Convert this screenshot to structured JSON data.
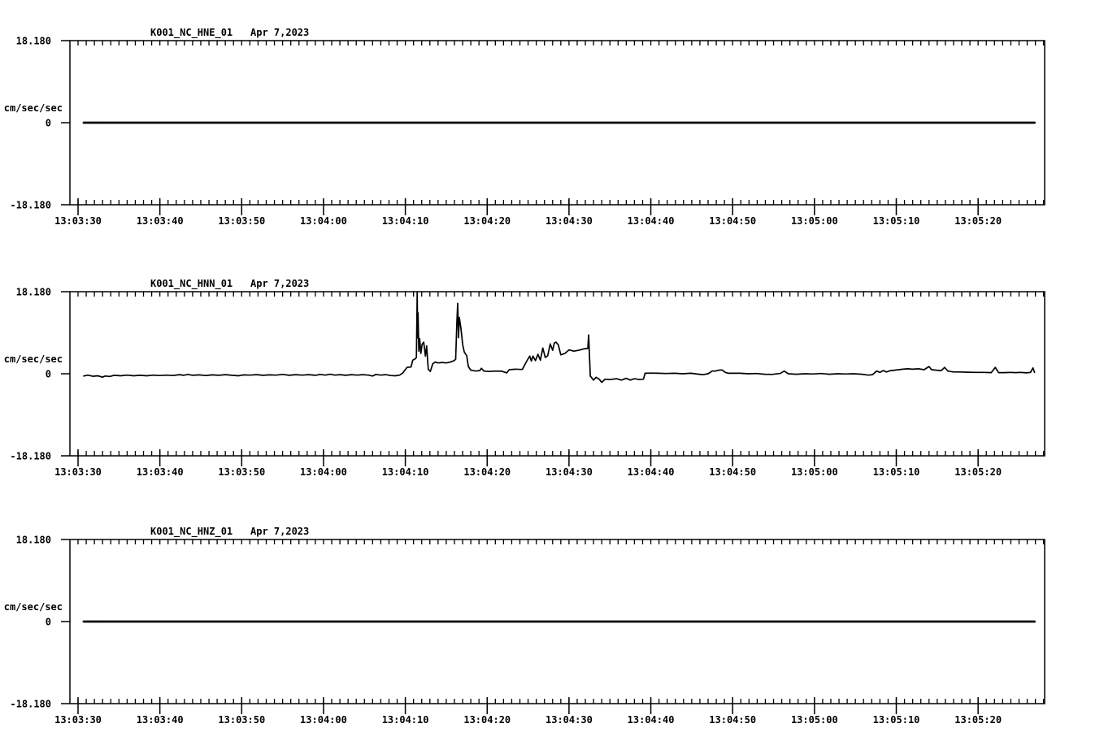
{
  "page": {
    "background": "#ffffff",
    "foreground": "#000000",
    "description": "Three-channel strong-motion seismogram display"
  },
  "chart_data": [
    {
      "type": "line",
      "title": "K001_NC_HNE_01",
      "date_label": "Apr 7,2023",
      "ylabel": "cm/sec/sec",
      "ylim": [
        -18.18,
        18.18
      ],
      "yticks": [
        {
          "value": 18.18,
          "label": "18.180"
        },
        {
          "value": 0,
          "label": "0"
        },
        {
          "value": -18.18,
          "label": "-18.180"
        }
      ],
      "xlim_seconds": [
        -1,
        118.1
      ],
      "x_minor_tick_interval_s": 1,
      "x_major_ticks": [
        {
          "t": 0,
          "label": "13:03:30"
        },
        {
          "t": 10,
          "label": "13:03:40"
        },
        {
          "t": 20,
          "label": "13:03:50"
        },
        {
          "t": 30,
          "label": "13:04:00"
        },
        {
          "t": 40,
          "label": "13:04:10"
        },
        {
          "t": 50,
          "label": "13:04:20"
        },
        {
          "t": 60,
          "label": "13:04:30"
        },
        {
          "t": 70,
          "label": "13:04:40"
        },
        {
          "t": 80,
          "label": "13:04:50"
        },
        {
          "t": 90,
          "label": "13:05:00"
        },
        {
          "t": 100,
          "label": "13:05:10"
        },
        {
          "t": 110,
          "label": "13:05:20"
        }
      ],
      "grid": false,
      "legend": false,
      "series": {
        "name": "HNE acceleration",
        "stroke_width": 2.8,
        "points": [
          [
            0.7,
            0
          ],
          [
            116.9,
            0
          ]
        ]
      }
    },
    {
      "type": "line",
      "title": "K001_NC_HNN_01",
      "date_label": "Apr 7,2023",
      "ylabel": "cm/sec/sec",
      "ylim": [
        -18.18,
        18.18
      ],
      "yticks": [
        {
          "value": 18.18,
          "label": "18.180"
        },
        {
          "value": 0,
          "label": "0"
        },
        {
          "value": -18.18,
          "label": "-18.180"
        }
      ],
      "xlim_seconds": [
        -1,
        118.1
      ],
      "x_minor_tick_interval_s": 1,
      "x_major_ticks": [
        {
          "t": 0,
          "label": "13:03:30"
        },
        {
          "t": 10,
          "label": "13:03:40"
        },
        {
          "t": 20,
          "label": "13:03:50"
        },
        {
          "t": 30,
          "label": "13:04:00"
        },
        {
          "t": 40,
          "label": "13:04:10"
        },
        {
          "t": 50,
          "label": "13:04:20"
        },
        {
          "t": 60,
          "label": "13:04:30"
        },
        {
          "t": 70,
          "label": "13:04:40"
        },
        {
          "t": 80,
          "label": "13:04:50"
        },
        {
          "t": 90,
          "label": "13:05:00"
        },
        {
          "t": 100,
          "label": "13:05:10"
        },
        {
          "t": 110,
          "label": "13:05:20"
        }
      ],
      "grid": false,
      "legend": false,
      "series": {
        "name": "HNN acceleration",
        "stroke_width": 1.7,
        "points": [
          [
            0.7,
            -0.5
          ],
          [
            1.2,
            -0.3
          ],
          [
            1.8,
            -0.55
          ],
          [
            2.4,
            -0.45
          ],
          [
            3.0,
            -0.75
          ],
          [
            3.3,
            -0.5
          ],
          [
            3.9,
            -0.6
          ],
          [
            4.4,
            -0.35
          ],
          [
            5.2,
            -0.45
          ],
          [
            6.0,
            -0.3
          ],
          [
            6.8,
            -0.45
          ],
          [
            7.6,
            -0.35
          ],
          [
            8.4,
            -0.45
          ],
          [
            9.2,
            -0.3
          ],
          [
            10.0,
            -0.4
          ],
          [
            10.8,
            -0.3
          ],
          [
            11.6,
            -0.4
          ],
          [
            12.4,
            -0.2
          ],
          [
            12.9,
            -0.35
          ],
          [
            13.4,
            -0.15
          ],
          [
            14.0,
            -0.35
          ],
          [
            14.8,
            -0.25
          ],
          [
            15.6,
            -0.4
          ],
          [
            16.4,
            -0.25
          ],
          [
            17.2,
            -0.35
          ],
          [
            18.0,
            -0.2
          ],
          [
            18.8,
            -0.35
          ],
          [
            19.6,
            -0.45
          ],
          [
            20.2,
            -0.25
          ],
          [
            21.0,
            -0.3
          ],
          [
            21.8,
            -0.2
          ],
          [
            22.6,
            -0.35
          ],
          [
            23.4,
            -0.25
          ],
          [
            24.2,
            -0.3
          ],
          [
            25.0,
            -0.15
          ],
          [
            25.8,
            -0.35
          ],
          [
            26.6,
            -0.2
          ],
          [
            27.4,
            -0.3
          ],
          [
            28.2,
            -0.2
          ],
          [
            29.0,
            -0.35
          ],
          [
            29.6,
            -0.15
          ],
          [
            30.2,
            -0.3
          ],
          [
            30.8,
            -0.1
          ],
          [
            31.4,
            -0.3
          ],
          [
            32.0,
            -0.2
          ],
          [
            32.7,
            -0.35
          ],
          [
            33.4,
            -0.2
          ],
          [
            34.1,
            -0.3
          ],
          [
            34.8,
            -0.2
          ],
          [
            35.5,
            -0.3
          ],
          [
            36.0,
            -0.5
          ],
          [
            36.4,
            -0.15
          ],
          [
            37.0,
            -0.3
          ],
          [
            37.6,
            -0.2
          ],
          [
            38.2,
            -0.4
          ],
          [
            38.8,
            -0.45
          ],
          [
            39.3,
            -0.3
          ],
          [
            39.7,
            0.2
          ],
          [
            40.2,
            1.4
          ],
          [
            40.7,
            1.5
          ],
          [
            40.9,
            3.0
          ],
          [
            41.2,
            3.3
          ],
          [
            41.35,
            3.6
          ],
          [
            41.45,
            18.1
          ],
          [
            41.5,
            8.0
          ],
          [
            41.55,
            13.5
          ],
          [
            41.65,
            5.0
          ],
          [
            41.75,
            7.8
          ],
          [
            41.9,
            4.5
          ],
          [
            42.05,
            6.5
          ],
          [
            42.25,
            7.0
          ],
          [
            42.45,
            3.9
          ],
          [
            42.6,
            6.2
          ],
          [
            42.8,
            1.0
          ],
          [
            43.05,
            0.5
          ],
          [
            43.35,
            2.2
          ],
          [
            43.65,
            2.6
          ],
          [
            44.0,
            2.4
          ],
          [
            44.5,
            2.5
          ],
          [
            45.0,
            2.4
          ],
          [
            45.5,
            2.6
          ],
          [
            45.95,
            2.9
          ],
          [
            46.15,
            3.2
          ],
          [
            46.3,
            11.5
          ],
          [
            46.4,
            15.6
          ],
          [
            46.5,
            8.0
          ],
          [
            46.6,
            12.5
          ],
          [
            46.8,
            10.0
          ],
          [
            47.0,
            6.5
          ],
          [
            47.2,
            4.8
          ],
          [
            47.5,
            4.0
          ],
          [
            47.7,
            1.6
          ],
          [
            48.0,
            0.8
          ],
          [
            48.6,
            0.6
          ],
          [
            49.1,
            0.7
          ],
          [
            49.3,
            1.2
          ],
          [
            49.6,
            0.6
          ],
          [
            50.2,
            0.5
          ],
          [
            51.0,
            0.6
          ],
          [
            51.8,
            0.55
          ],
          [
            52.4,
            0.2
          ],
          [
            52.7,
            0.9
          ],
          [
            53.5,
            1.0
          ],
          [
            54.3,
            0.95
          ],
          [
            54.8,
            2.7
          ],
          [
            55.2,
            3.9
          ],
          [
            55.4,
            2.8
          ],
          [
            55.6,
            3.9
          ],
          [
            55.9,
            2.9
          ],
          [
            56.2,
            4.3
          ],
          [
            56.5,
            3.0
          ],
          [
            56.8,
            5.7
          ],
          [
            57.1,
            3.6
          ],
          [
            57.4,
            4.0
          ],
          [
            57.7,
            6.6
          ],
          [
            58.0,
            5.2
          ],
          [
            58.2,
            6.8
          ],
          [
            58.4,
            7.0
          ],
          [
            58.7,
            6.4
          ],
          [
            59.0,
            4.2
          ],
          [
            59.5,
            4.5
          ],
          [
            60.0,
            5.3
          ],
          [
            60.6,
            5.0
          ],
          [
            61.2,
            5.2
          ],
          [
            61.8,
            5.5
          ],
          [
            62.3,
            5.6
          ],
          [
            62.4,
            8.6
          ],
          [
            62.6,
            -0.5
          ],
          [
            63.0,
            -1.4
          ],
          [
            63.3,
            -0.8
          ],
          [
            63.7,
            -1.2
          ],
          [
            64.0,
            -1.9
          ],
          [
            64.4,
            -1.2
          ],
          [
            65.0,
            -1.3
          ],
          [
            65.8,
            -1.1
          ],
          [
            66.4,
            -1.4
          ],
          [
            67.0,
            -1.0
          ],
          [
            67.5,
            -1.4
          ],
          [
            68.0,
            -1.1
          ],
          [
            68.6,
            -1.3
          ],
          [
            69.1,
            -1.2
          ],
          [
            69.3,
            0.1
          ],
          [
            70.0,
            0.15
          ],
          [
            70.9,
            0.1
          ],
          [
            71.9,
            0.05
          ],
          [
            72.9,
            0.1
          ],
          [
            73.9,
            0.0
          ],
          [
            74.9,
            0.1
          ],
          [
            75.9,
            -0.1
          ],
          [
            76.4,
            -0.2
          ],
          [
            77.0,
            0.0
          ],
          [
            77.5,
            0.6
          ],
          [
            77.9,
            0.6
          ],
          [
            78.3,
            0.8
          ],
          [
            78.7,
            0.85
          ],
          [
            79.1,
            0.3
          ],
          [
            79.5,
            0.1
          ],
          [
            80.9,
            0.1
          ],
          [
            81.9,
            0.0
          ],
          [
            82.9,
            0.05
          ],
          [
            83.9,
            -0.1
          ],
          [
            84.8,
            -0.15
          ],
          [
            85.8,
            0.05
          ],
          [
            86.3,
            0.6
          ],
          [
            86.8,
            0.0
          ],
          [
            87.8,
            -0.1
          ],
          [
            88.8,
            0.0
          ],
          [
            89.8,
            -0.05
          ],
          [
            90.8,
            0.05
          ],
          [
            91.8,
            -0.1
          ],
          [
            92.8,
            0.0
          ],
          [
            93.8,
            -0.05
          ],
          [
            94.8,
            0.0
          ],
          [
            95.8,
            -0.1
          ],
          [
            96.6,
            -0.3
          ],
          [
            97.1,
            -0.2
          ],
          [
            97.6,
            0.6
          ],
          [
            98.0,
            0.3
          ],
          [
            98.4,
            0.7
          ],
          [
            98.8,
            0.4
          ],
          [
            99.3,
            0.7
          ],
          [
            99.8,
            0.8
          ],
          [
            100.3,
            0.9
          ],
          [
            100.8,
            1.0
          ],
          [
            101.4,
            1.1
          ],
          [
            102.0,
            1.0
          ],
          [
            102.7,
            1.1
          ],
          [
            103.4,
            0.9
          ],
          [
            104.0,
            1.6
          ],
          [
            104.3,
            0.9
          ],
          [
            104.9,
            0.8
          ],
          [
            105.5,
            0.7
          ],
          [
            105.9,
            1.4
          ],
          [
            106.3,
            0.6
          ],
          [
            107.0,
            0.4
          ],
          [
            107.8,
            0.4
          ],
          [
            108.7,
            0.35
          ],
          [
            109.7,
            0.3
          ],
          [
            110.7,
            0.3
          ],
          [
            111.6,
            0.25
          ],
          [
            112.1,
            1.4
          ],
          [
            112.5,
            0.25
          ],
          [
            113.2,
            0.25
          ],
          [
            114.0,
            0.3
          ],
          [
            114.6,
            0.25
          ],
          [
            115.2,
            0.3
          ],
          [
            115.9,
            0.2
          ],
          [
            116.4,
            0.3
          ],
          [
            116.7,
            1.3
          ],
          [
            116.9,
            0.3
          ]
        ]
      }
    },
    {
      "type": "line",
      "title": "K001_NC_HNZ_01",
      "date_label": "Apr 7,2023",
      "ylabel": "cm/sec/sec",
      "ylim": [
        -18.18,
        18.18
      ],
      "yticks": [
        {
          "value": 18.18,
          "label": "18.180"
        },
        {
          "value": 0,
          "label": "0"
        },
        {
          "value": -18.18,
          "label": "-18.180"
        }
      ],
      "xlim_seconds": [
        -1,
        118.1
      ],
      "x_minor_tick_interval_s": 1,
      "x_major_ticks": [
        {
          "t": 0,
          "label": "13:03:30"
        },
        {
          "t": 10,
          "label": "13:03:40"
        },
        {
          "t": 20,
          "label": "13:03:50"
        },
        {
          "t": 30,
          "label": "13:04:00"
        },
        {
          "t": 40,
          "label": "13:04:10"
        },
        {
          "t": 50,
          "label": "13:04:20"
        },
        {
          "t": 60,
          "label": "13:04:30"
        },
        {
          "t": 70,
          "label": "13:04:40"
        },
        {
          "t": 80,
          "label": "13:04:50"
        },
        {
          "t": 90,
          "label": "13:05:00"
        },
        {
          "t": 100,
          "label": "13:05:10"
        },
        {
          "t": 110,
          "label": "13:05:20"
        }
      ],
      "grid": false,
      "legend": false,
      "series": {
        "name": "HNZ acceleration",
        "stroke_width": 2.8,
        "points": [
          [
            0.7,
            0
          ],
          [
            116.9,
            0
          ]
        ]
      }
    }
  ]
}
